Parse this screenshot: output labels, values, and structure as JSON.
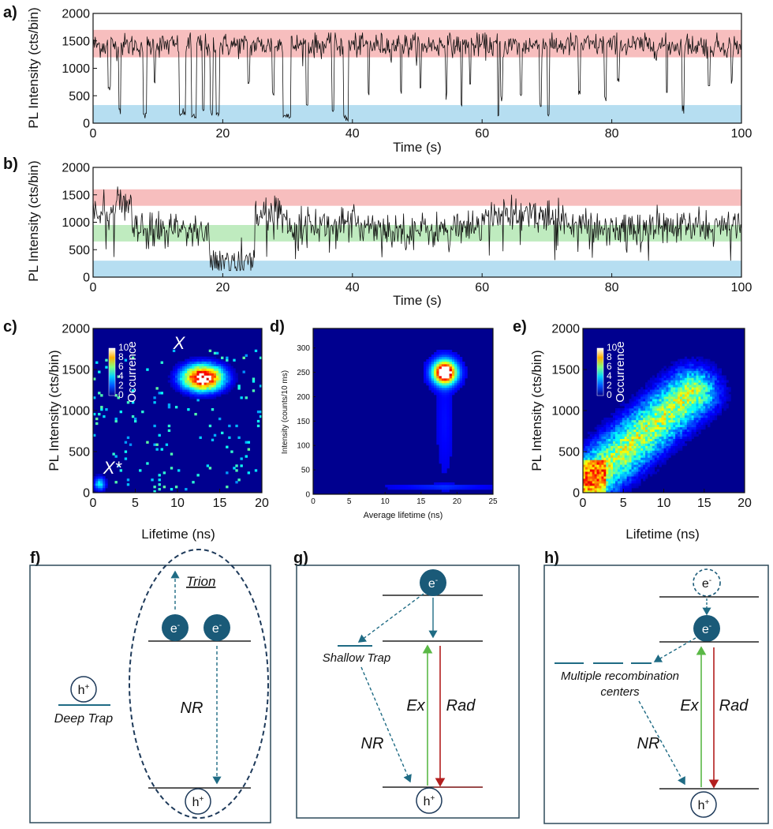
{
  "chart_data": [
    {
      "panel": "a)",
      "type": "line",
      "xlabel": "Time (s)",
      "ylabel": "PL Intensity (cts/bin)",
      "xlim": [
        0,
        100
      ],
      "ylim": [
        0,
        2000
      ],
      "xticks": [
        0,
        20,
        40,
        60,
        80,
        100
      ],
      "yticks": [
        0,
        500,
        1000,
        1500,
        2000
      ],
      "bands": [
        {
          "from": 1200,
          "to": 1700,
          "color": "#f6b3b3"
        },
        {
          "from": 0,
          "to": 330,
          "color": "#a9d8ee"
        }
      ],
      "trace": {
        "base": 1420,
        "noise": 110,
        "min_value": 0,
        "dips": [
          [
            2.5,
            0.4,
            600
          ],
          [
            4.1,
            0.3,
            150
          ],
          [
            8.0,
            0.6,
            80
          ],
          [
            9.5,
            0.3,
            700
          ],
          [
            13.8,
            1.0,
            120
          ],
          [
            15.6,
            0.8,
            90
          ],
          [
            17.0,
            0.3,
            200
          ],
          [
            18.3,
            0.4,
            120
          ],
          [
            19.2,
            0.5,
            100
          ],
          [
            24.0,
            0.4,
            700
          ],
          [
            27.8,
            0.3,
            500
          ],
          [
            29.9,
            1.2,
            90
          ],
          [
            33.0,
            0.3,
            300
          ],
          [
            37.0,
            0.3,
            200
          ],
          [
            39.0,
            0.8,
            40
          ],
          [
            42.5,
            0.3,
            500
          ],
          [
            47.5,
            0.2,
            500
          ],
          [
            50.5,
            0.3,
            600
          ],
          [
            54.5,
            0.2,
            400
          ],
          [
            56.8,
            0.2,
            300
          ],
          [
            58.2,
            0.2,
            700
          ],
          [
            62.5,
            0.3,
            80
          ],
          [
            63.0,
            0.3,
            400
          ],
          [
            66.0,
            0.3,
            500
          ],
          [
            69.0,
            0.4,
            300
          ],
          [
            70.2,
            0.4,
            100
          ],
          [
            75.0,
            0.3,
            500
          ],
          [
            79.0,
            0.4,
            400
          ],
          [
            81.0,
            0.3,
            700
          ],
          [
            88.5,
            0.3,
            500
          ],
          [
            91.0,
            0.3,
            150
          ],
          [
            95.0,
            0.3,
            600
          ],
          [
            98.5,
            0.3,
            700
          ]
        ]
      }
    },
    {
      "panel": "b)",
      "type": "line",
      "xlabel": "Time (s)",
      "ylabel": "PL Intensity (cts/bin)",
      "xlim": [
        0,
        100
      ],
      "ylim": [
        0,
        2000
      ],
      "xticks": [
        0,
        20,
        40,
        60,
        80,
        100
      ],
      "yticks": [
        0,
        500,
        1000,
        1500,
        2000
      ],
      "bands": [
        {
          "from": 1300,
          "to": 1600,
          "color": "#f6b3b3"
        },
        {
          "from": 650,
          "to": 950,
          "color": "#b4e8b4"
        },
        {
          "from": 0,
          "to": 300,
          "color": "#a9d8ee"
        }
      ],
      "trace": {
        "segments": [
          [
            0,
            3,
            1150
          ],
          [
            3,
            6,
            1300
          ],
          [
            6,
            18,
            850
          ],
          [
            18,
            25,
            280
          ],
          [
            25,
            30,
            1150
          ],
          [
            30,
            45,
            950
          ],
          [
            45,
            60,
            850
          ],
          [
            60,
            70,
            1150
          ],
          [
            70,
            75,
            1050
          ],
          [
            75,
            100,
            900
          ]
        ],
        "noise": 160,
        "min_value": 120
      }
    },
    {
      "panel": "c)",
      "type": "heatmap",
      "xlabel": "Lifetime (ns)",
      "ylabel": "PL Intensity (cts/bin)",
      "xlim": [
        0,
        20
      ],
      "ylim": [
        0,
        2000
      ],
      "xticks": [
        0,
        5,
        10,
        15,
        20
      ],
      "yticks": [
        0,
        500,
        1000,
        1500,
        2000
      ],
      "colorbar": {
        "label": "Occurrence",
        "ticks": [
          "10",
          "8",
          "6",
          "4",
          "2",
          "0"
        ]
      },
      "annotations": [
        {
          "text": "X",
          "x": 9.5,
          "y": 1750
        },
        {
          "text": "X*",
          "x": 1.2,
          "y": 230
        }
      ],
      "clusters": [
        [
          13,
          1400,
          1.7,
          110,
          1.0
        ],
        [
          0.8,
          110,
          0.5,
          60,
          0.35
        ]
      ]
    },
    {
      "panel": "d)",
      "type": "heatmap",
      "xlabel": "Average lifetime (ns)",
      "ylabel": "Intensity (counts/10 ms)",
      "xlim": [
        0,
        25
      ],
      "ylim": [
        0,
        340
      ],
      "xticks": [
        0,
        5,
        10,
        15,
        20,
        25
      ],
      "yticks": [
        0,
        50,
        100,
        150,
        200,
        250,
        300
      ],
      "clusters": [
        [
          18.3,
          250,
          1.1,
          16,
          1.0
        ],
        [
          18.3,
          150,
          0.8,
          80,
          0.05
        ],
        [
          18,
          15,
          5,
          4,
          0.08
        ]
      ]
    },
    {
      "panel": "e)",
      "type": "heatmap",
      "xlabel": "Lifetime (ns)",
      "ylabel": "PL Intensity (cts/bin)",
      "xlim": [
        0,
        20
      ],
      "ylim": [
        0,
        2000
      ],
      "xticks": [
        0,
        5,
        10,
        15,
        20
      ],
      "yticks": [
        0,
        500,
        1000,
        1500,
        2000
      ],
      "colorbar": {
        "label": "Occurrence",
        "ticks": [
          "10",
          "8",
          "6",
          "4",
          "2",
          "0"
        ]
      },
      "diagonal": {
        "from": [
          2,
          250
        ],
        "to": [
          12,
          1100
        ],
        "spread_x": 2.2,
        "spread_y": 200
      }
    }
  ],
  "diagrams": {
    "f": {
      "label": "f)",
      "trion_label": "Trion",
      "deep_trap_label": "Deep Trap",
      "nr_label": "NR",
      "electron": "e",
      "electron_sup": "-",
      "hole": "h",
      "hole_sup": "+"
    },
    "g": {
      "label": "g)",
      "shallow_trap_label": "Shallow Trap",
      "nr_label": "NR",
      "ex_label": "Ex",
      "rad_label": "Rad",
      "electron": "e",
      "electron_sup": "-",
      "hole": "h",
      "hole_sup": "+"
    },
    "h": {
      "label": "h)",
      "centers_line1": "Multiple recombination",
      "centers_line2": "centers",
      "nr_label": "NR",
      "ex_label": "Ex",
      "rad_label": "Rad",
      "electron": "e",
      "electron_sup": "-",
      "hole": "h",
      "hole_sup": "+"
    }
  },
  "colors": {
    "trace": "#111111",
    "heat_background": "#00008f",
    "ball": "#1a5a78",
    "arrow": "#1f6b84",
    "green_arrow": "#5ab846",
    "red_arrow": "#b31e1e"
  }
}
